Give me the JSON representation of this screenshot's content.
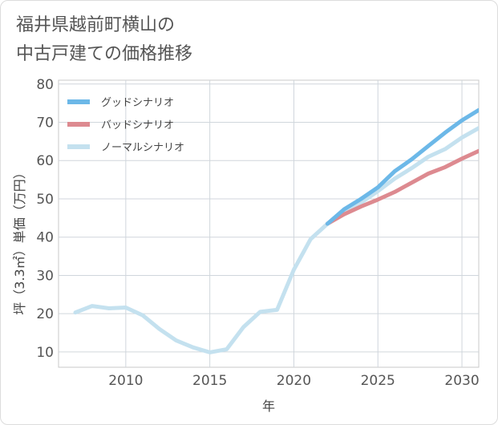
{
  "title_line1": "福井県越前町横山の",
  "title_line2": "中古戸建ての価格推移",
  "chart_data": {
    "type": "line",
    "xlabel": "年",
    "ylabel": "坪（3.3㎡）単価（万円）",
    "xlim": [
      2006,
      2031
    ],
    "ylim": [
      6,
      81
    ],
    "xticks": [
      2010,
      2015,
      2020,
      2025,
      2030
    ],
    "yticks": [
      10,
      20,
      30,
      40,
      50,
      60,
      70,
      80
    ],
    "grid": true,
    "legend_position": "top-left",
    "series": [
      {
        "name": "グッドシナリオ",
        "color": "#6cb8e8",
        "x": [
          2022,
          2023,
          2024,
          2025,
          2026,
          2027,
          2028,
          2029,
          2030,
          2031
        ],
        "y": [
          43.5,
          47.3,
          50.0,
          53.0,
          57.2,
          60.3,
          63.8,
          67.3,
          70.5,
          73.2
        ]
      },
      {
        "name": "バッドシナリオ",
        "color": "#dd8a90",
        "x": [
          2022,
          2023,
          2024,
          2025,
          2026,
          2027,
          2028,
          2029,
          2030,
          2031
        ],
        "y": [
          43.5,
          46.0,
          48.0,
          49.8,
          51.8,
          54.2,
          56.6,
          58.3,
          60.5,
          62.5
        ]
      },
      {
        "name": "ノーマルシナリオ",
        "color": "#c4e1ef",
        "x": [
          2007,
          2008,
          2009,
          2010,
          2011,
          2012,
          2013,
          2014,
          2015,
          2016,
          2017,
          2018,
          2019,
          2020,
          2021,
          2022,
          2023,
          2024,
          2025,
          2026,
          2027,
          2028,
          2029,
          2030,
          2031
        ],
        "y": [
          20.3,
          22.0,
          21.4,
          21.6,
          19.6,
          16.0,
          13.0,
          11.2,
          9.9,
          10.7,
          16.5,
          20.5,
          21.0,
          31.5,
          39.5,
          43.5,
          46.5,
          49.0,
          52.0,
          55.3,
          58.0,
          61.0,
          63.0,
          66.0,
          68.5
        ]
      }
    ]
  }
}
